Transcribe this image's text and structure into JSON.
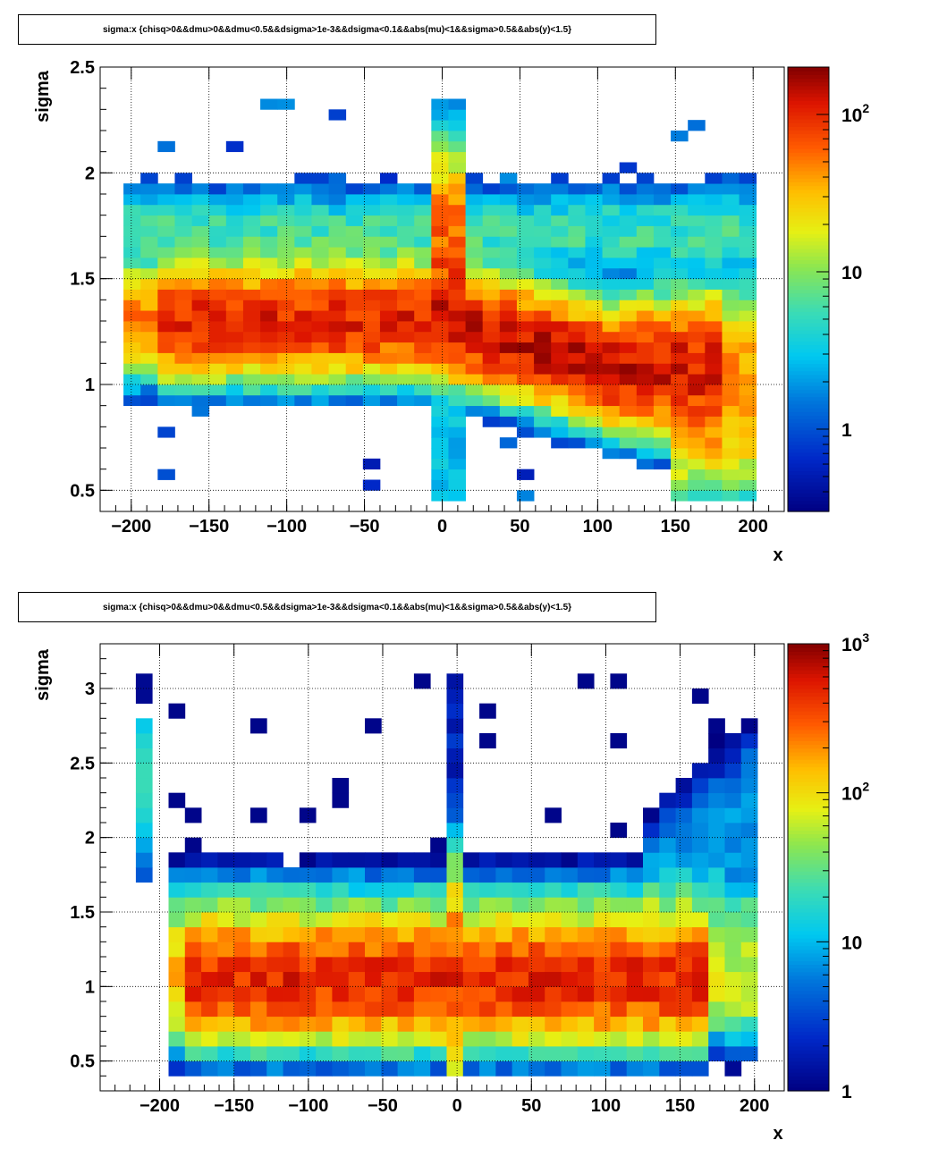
{
  "panels": [
    {
      "title": "sigma:x {chisq>0&&dmu>0&&dmu<0.5&&dsigma>1e-3&&dsigma<0.1&&abs(mu)<1&&sigma>0.5&&abs(y)<1.5}",
      "xlabel": "x",
      "ylabel": "sigma"
    },
    {
      "title": "sigma:x {chisq>0&&dmu>0&&dmu<0.5&&dsigma>1e-3&&dsigma<0.1&&abs(mu)<1&&sigma>0.5&&abs(y)<1.5}",
      "xlabel": "x",
      "ylabel": "sigma"
    }
  ],
  "chart_data": [
    {
      "type": "heatmap",
      "title": "sigma:x {chisq>0&&dmu>0&&dmu<0.5&&dsigma>1e-3&&dsigma<0.1&&abs(mu)<1&&sigma>0.5&&abs(y)<1.5}",
      "xlabel": "x",
      "ylabel": "sigma",
      "xlim": [
        -220,
        220
      ],
      "ylim": [
        0.4,
        2.5
      ],
      "x_bin_width": 11,
      "y_bin_width": 0.05,
      "x_ticks": [
        -200,
        -150,
        -100,
        -50,
        0,
        50,
        100,
        150,
        200
      ],
      "x_tick_labels": [
        "−200",
        "−150",
        "−100",
        "−50",
        "0",
        "50",
        "100",
        "150",
        "200"
      ],
      "y_ticks": [
        0.5,
        1,
        1.5,
        2,
        2.5
      ],
      "y_tick_labels": [
        "0.5",
        "1",
        "1.5",
        "2",
        "2.5"
      ],
      "colorscale": "log",
      "z_range": [
        0.3,
        200
      ],
      "colorbar_labels": [
        {
          "value": 1,
          "base": "1",
          "exp": ""
        },
        {
          "value": 10,
          "base": "10",
          "exp": ""
        },
        {
          "value": 100,
          "base": "10",
          "exp": "2"
        }
      ],
      "grid": true,
      "description": "Dense band centered at sigma~1.3 for x<0 descending toward sigma~1.0-1.1 for x in 50..150; spike of elevated sigma near x=0; sparse tails above and below the band."
    },
    {
      "type": "heatmap",
      "title": "sigma:x {chisq>0&&dmu>0&&dmu<0.5&&dsigma>1e-3&&dsigma<0.1&&abs(mu)<1&&sigma>0.5&&abs(y)<1.5}",
      "xlabel": "x",
      "ylabel": "sigma",
      "xlim": [
        -240,
        220
      ],
      "ylim": [
        0.3,
        3.3
      ],
      "x_bin_width": 11,
      "y_bin_width": 0.1,
      "x_ticks": [
        -200,
        -150,
        -100,
        -50,
        0,
        50,
        100,
        150,
        200
      ],
      "x_tick_labels": [
        "−200",
        "−150",
        "−100",
        "−50",
        "0",
        "50",
        "100",
        "150",
        "200"
      ],
      "y_ticks": [
        0.5,
        1,
        1.5,
        2,
        2.5,
        3
      ],
      "y_tick_labels": [
        "0.5",
        "1",
        "1.5",
        "2",
        "2.5",
        "3"
      ],
      "colorscale": "log",
      "z_range": [
        1,
        1000
      ],
      "colorbar_labels": [
        {
          "value": 1,
          "base": "1",
          "exp": ""
        },
        {
          "value": 10,
          "base": "10",
          "exp": ""
        },
        {
          "value": 100,
          "base": "10",
          "exp": "2"
        },
        {
          "value": 1000,
          "base": "10",
          "exp": "3"
        }
      ],
      "grid": true,
      "description": "Wide band at sigma 0.8-1.3 for x from -195 to 195 peaking near sigma~1.0-1.1; vertical spike at x~-5 up to sigma~3; isolated column at x~-210 between sigma 1.7 and 2.8; rising sparse tail above band for x>120."
    }
  ]
}
